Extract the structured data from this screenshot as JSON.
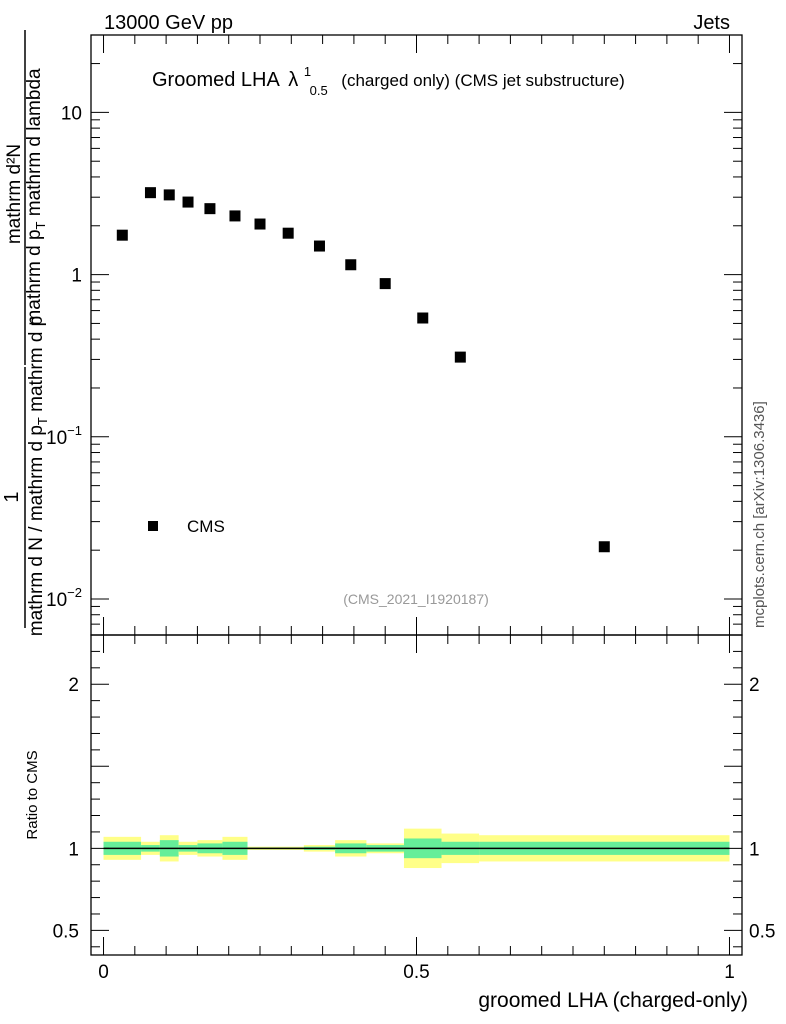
{
  "header": {
    "energy_label": "13000 GeV pp",
    "process_label": "Jets"
  },
  "side_label": "mcplots.cern.ch [arXiv:1306.3436]",
  "chart_data": [
    {
      "type": "scatter",
      "title": {
        "main": "Groomed LHA",
        "symbol": "λ",
        "sup": "1",
        "sub": "0.5",
        "suffix": "(charged only) (CMS jet substructure)"
      },
      "ylabel": {
        "numerator_one": "1",
        "numerator_frac": "mathrm d²N",
        "denominator_frac_prefix": "mathrm d p",
        "denominator_frac_sub": "T",
        "denominator_frac_suffix": " mathrm d lambda",
        "denominator_outer_prefix": "mathrm d N / mathrm d p",
        "denominator_outer_sub": "T",
        "denominator_outer_suffix": " mathrm d p"
      },
      "yscale": "log",
      "ylim": [
        0.006,
        30
      ],
      "xlim": [
        -0.02,
        1.02
      ],
      "yticks": [
        {
          "value": 0.01,
          "base": "10",
          "exp": "−2"
        },
        {
          "value": 0.1,
          "base": "10",
          "exp": "−1"
        },
        {
          "value": 1,
          "label": "1"
        },
        {
          "value": 10,
          "label": "10"
        }
      ],
      "series": [
        {
          "name": "CMS",
          "marker": "square",
          "color": "#000000",
          "x": [
            0.03,
            0.075,
            0.105,
            0.135,
            0.17,
            0.21,
            0.25,
            0.295,
            0.345,
            0.395,
            0.45,
            0.51,
            0.57,
            0.8
          ],
          "y": [
            1.75,
            3.2,
            3.1,
            2.8,
            2.55,
            2.3,
            2.05,
            1.8,
            1.5,
            1.15,
            0.88,
            0.54,
            0.31,
            0.021
          ]
        }
      ],
      "legend": {
        "position": "bottom-left",
        "entries": [
          "CMS"
        ]
      },
      "analysis_label": "(CMS_2021_I1920187)"
    },
    {
      "type": "line",
      "ylabel": "Ratio to CMS",
      "xlabel": "groomed LHA (charged-only)",
      "xlim": [
        -0.02,
        1.02
      ],
      "ylim": [
        0.35,
        2.3
      ],
      "xticks": [
        {
          "value": 0,
          "label": "0"
        },
        {
          "value": 0.5,
          "label": "0.5"
        },
        {
          "value": 1,
          "label": "1"
        }
      ],
      "yticks": [
        {
          "value": 0.5,
          "label": "0.5"
        },
        {
          "value": 1,
          "label": "1"
        },
        {
          "value": 2,
          "label": "2"
        }
      ],
      "reference_line": 1,
      "bins": [
        {
          "lo": 0.0,
          "hi": 0.06,
          "inner": 0.04,
          "outer": 0.07
        },
        {
          "lo": 0.06,
          "hi": 0.09,
          "inner": 0.02,
          "outer": 0.04
        },
        {
          "lo": 0.09,
          "hi": 0.12,
          "inner": 0.05,
          "outer": 0.08
        },
        {
          "lo": 0.12,
          "hi": 0.15,
          "inner": 0.02,
          "outer": 0.04
        },
        {
          "lo": 0.15,
          "hi": 0.19,
          "inner": 0.03,
          "outer": 0.05
        },
        {
          "lo": 0.19,
          "hi": 0.23,
          "inner": 0.04,
          "outer": 0.07
        },
        {
          "lo": 0.23,
          "hi": 0.27,
          "inner": 0.005,
          "outer": 0.01
        },
        {
          "lo": 0.27,
          "hi": 0.32,
          "inner": 0.005,
          "outer": 0.01
        },
        {
          "lo": 0.32,
          "hi": 0.37,
          "inner": 0.01,
          "outer": 0.02
        },
        {
          "lo": 0.37,
          "hi": 0.42,
          "inner": 0.03,
          "outer": 0.05
        },
        {
          "lo": 0.42,
          "hi": 0.48,
          "inner": 0.02,
          "outer": 0.03
        },
        {
          "lo": 0.48,
          "hi": 0.54,
          "inner": 0.06,
          "outer": 0.12
        },
        {
          "lo": 0.54,
          "hi": 0.6,
          "inner": 0.04,
          "outer": 0.09
        },
        {
          "lo": 0.6,
          "hi": 1.0,
          "inner": 0.04,
          "outer": 0.08
        }
      ],
      "colors": {
        "inner": "#66ee99",
        "outer": "#ffff88",
        "line": "#000000"
      }
    }
  ]
}
